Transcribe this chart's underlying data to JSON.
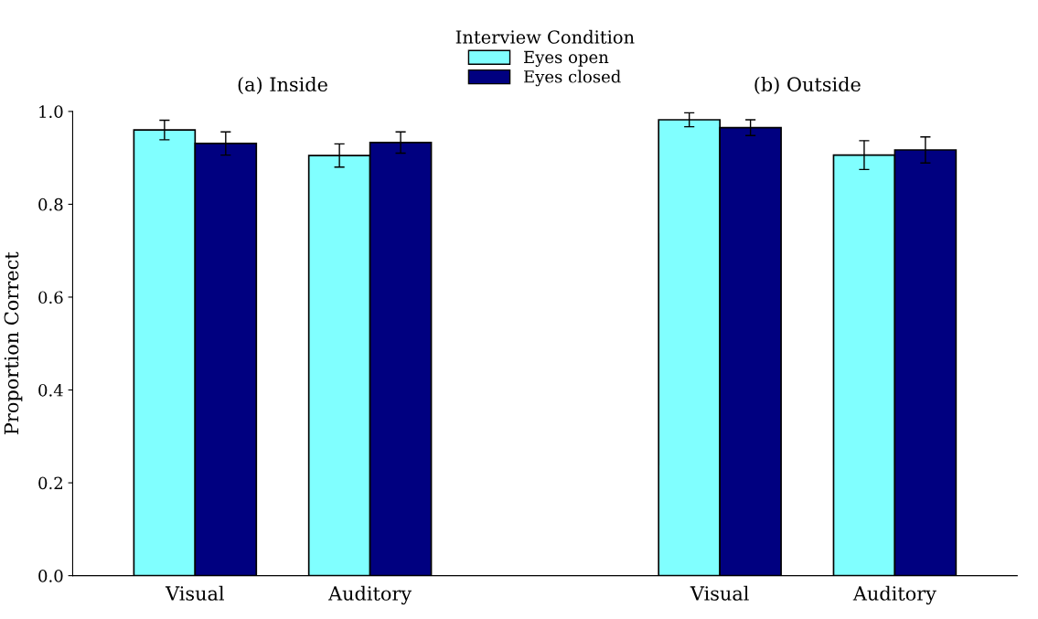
{
  "chart_data": {
    "type": "bar",
    "ylabel": "Proportion Correct",
    "legend_title": "Interview Condition",
    "legend": "top",
    "categories": [
      "Visual",
      "Auditory",
      null,
      "Visual",
      "Auditory"
    ],
    "series": [
      {
        "name": "Eyes open",
        "color": "#80ffff",
        "values": [
          0.96,
          0.905,
          null,
          0.982,
          0.906
        ],
        "errors": [
          0.021,
          0.025,
          null,
          0.015,
          0.031
        ]
      },
      {
        "name": "Eyes closed",
        "color": "#000080",
        "values": [
          0.931,
          0.933,
          null,
          0.965,
          0.917
        ],
        "errors": [
          0.025,
          0.023,
          null,
          0.017,
          0.028
        ]
      }
    ],
    "annotations": [
      "(a) Inside",
      "(b) Outside"
    ],
    "ylim": [
      0,
      1.0
    ],
    "yticks": [
      {
        "value": 0,
        "label": "0.0"
      },
      {
        "value": 0.2,
        "label": "0.2"
      },
      {
        "value": 0.4,
        "label": "0.4"
      },
      {
        "value": 0.6,
        "label": "0.6"
      },
      {
        "value": 0.8,
        "label": "0.8"
      },
      {
        "value": 1.0,
        "label": "1.0"
      }
    ],
    "grid": false
  }
}
